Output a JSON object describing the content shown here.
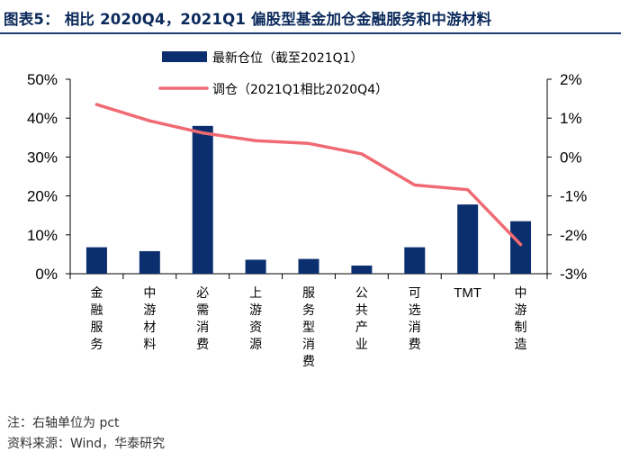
{
  "title": "图表5： 相比 2020Q4，2021Q1 偏股型基金加仓金融服务和中游材料",
  "chart_data": {
    "type": "bar+line",
    "categories": [
      "金融服务",
      "中游材料",
      "必需消费",
      "上游资源",
      "服务型消费",
      "公共产业",
      "可选消费",
      "TMT",
      "中游制造"
    ],
    "series": [
      {
        "name": "最新仓位（截至2021Q1）",
        "type": "bar",
        "axis": "left",
        "color": "#0b2f6e",
        "values": [
          6.8,
          5.8,
          38.0,
          3.6,
          3.8,
          2.1,
          6.8,
          17.8,
          13.5
        ]
      },
      {
        "name": "调仓（2021Q1相比2020Q4）",
        "type": "line",
        "axis": "right",
        "color": "#f06a73",
        "values": [
          1.35,
          0.93,
          0.62,
          0.42,
          0.35,
          0.08,
          -0.72,
          -0.84,
          -2.25
        ]
      }
    ],
    "y_left": {
      "min": 0,
      "max": 50,
      "ticks": [
        "0%",
        "10%",
        "20%",
        "30%",
        "40%",
        "50%"
      ]
    },
    "y_right": {
      "min": -3,
      "max": 2,
      "ticks": [
        "-3%",
        "-2%",
        "-1%",
        "0%",
        "1%",
        "2%"
      ]
    },
    "legend_position": "top-center",
    "grid": false
  },
  "footnotes": {
    "note": "注：右轴单位为 pct",
    "source": "资料来源：Wind，华泰研究"
  }
}
